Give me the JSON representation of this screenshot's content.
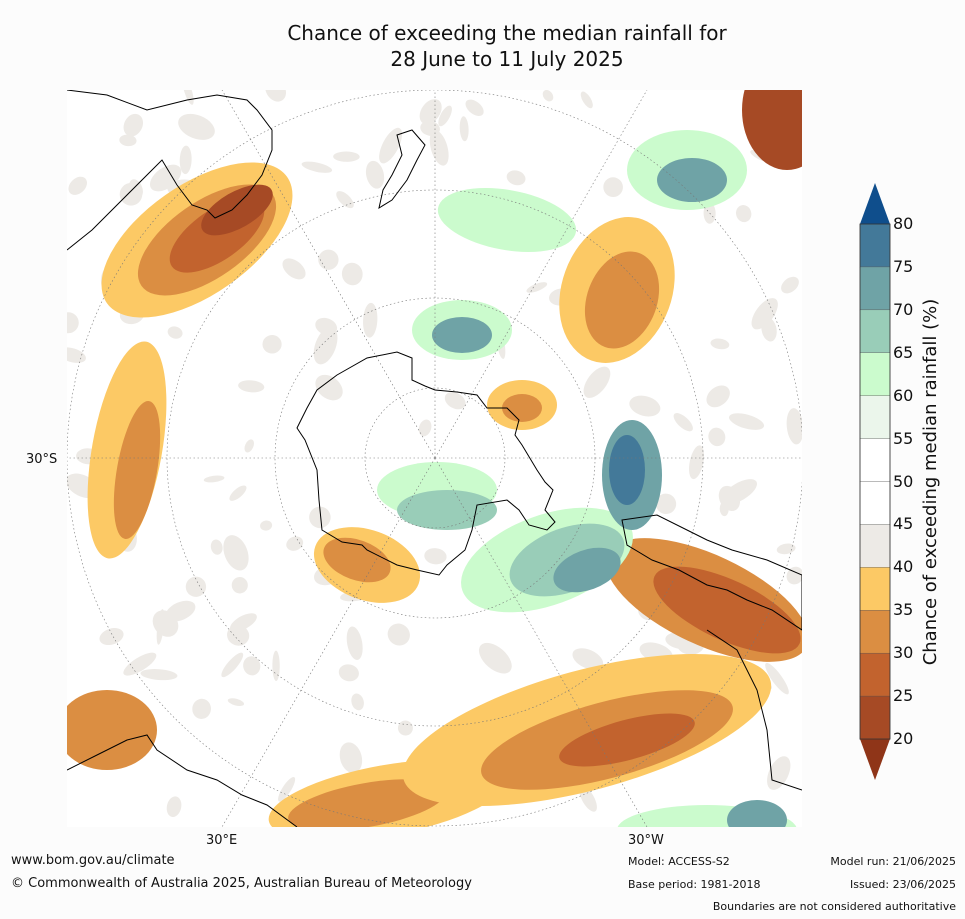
{
  "title": {
    "line1": "Chance of exceeding the median rainfall for",
    "line2": "28 June to 11 July 2025"
  },
  "map": {
    "lat_label": "30°S",
    "lon_label_left": "30°E",
    "lon_label_right": "30°W",
    "projection": "south-polar-stereographic",
    "features": [
      "Antarctica",
      "Australia",
      "New Zealand",
      "South America",
      "Africa"
    ]
  },
  "colorbar": {
    "label": "Chance of exceeding median rainfall (%)",
    "ticks": [
      "80",
      "75",
      "70",
      "65",
      "60",
      "55",
      "50",
      "45",
      "40",
      "35",
      "30",
      "25",
      "20"
    ],
    "colors": {
      "above_80": "#0f4e8c",
      "75_80": "#437999",
      "70_75": "#6fa3a6",
      "65_70": "#99cdb8",
      "60_65": "#cbfbcd",
      "55_60": "#ebf6eb",
      "50_55": "#ffffff",
      "45_50": "#ffffff",
      "40_45": "#edeae6",
      "35_40": "#fcc965",
      "30_35": "#db8e42",
      "25_30": "#c2632e",
      "20_25": "#a64a25",
      "below_20": "#8f3518"
    }
  },
  "footer": {
    "website": "www.bom.gov.au/climate",
    "copyright": "© Commonwealth of Australia 2025, Australian Bureau of Meteorology",
    "model": "Model: ACCESS-S2",
    "base_period": "Base period: 1981-2018",
    "model_run": "Model run: 21/06/2025",
    "issued": "Issued: 23/06/2025",
    "disclaimer": "Boundaries are not considered authoritative"
  }
}
